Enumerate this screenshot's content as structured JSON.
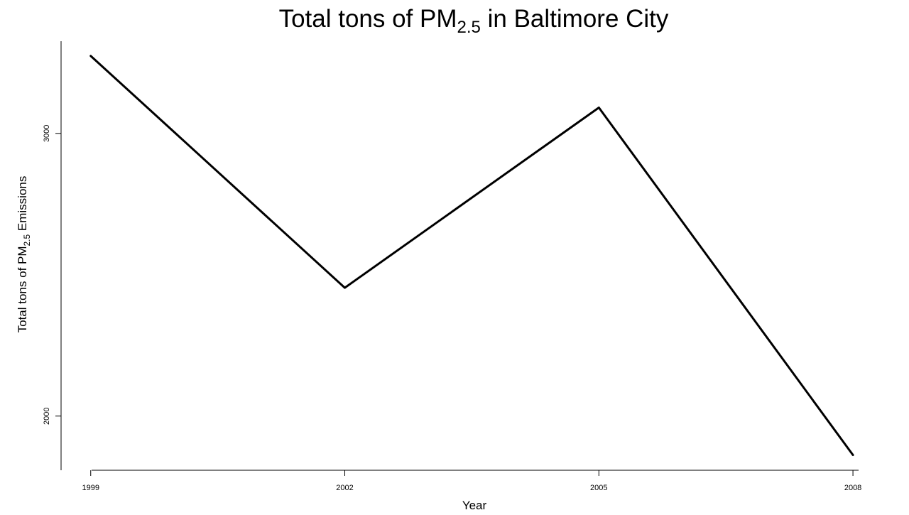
{
  "chart_data": {
    "type": "line",
    "title": {
      "prefix": "Total tons of PM",
      "subscript": "2.5",
      "suffix": " in Baltimore City"
    },
    "xlabel": "Year",
    "ylabel": {
      "prefix": "Total tons of PM",
      "subscript": "2.5",
      "suffix": " Emissions"
    },
    "x": [
      1999,
      2002,
      2005,
      2008
    ],
    "x_ticks": [
      "1999",
      "2002",
      "2005",
      "2008"
    ],
    "y_ticks": [
      2000,
      3000
    ],
    "y_tick_labels": [
      "2000",
      "3000"
    ],
    "xlim": [
      1998.65,
      2008.1
    ],
    "ylim": [
      1808.32,
      3326.26
    ],
    "series": [
      {
        "values": [
          3274.18,
          2453.92,
          3091.35,
          1862.28
        ],
        "color": "#000000"
      }
    ],
    "grid": false,
    "legend": "none"
  }
}
